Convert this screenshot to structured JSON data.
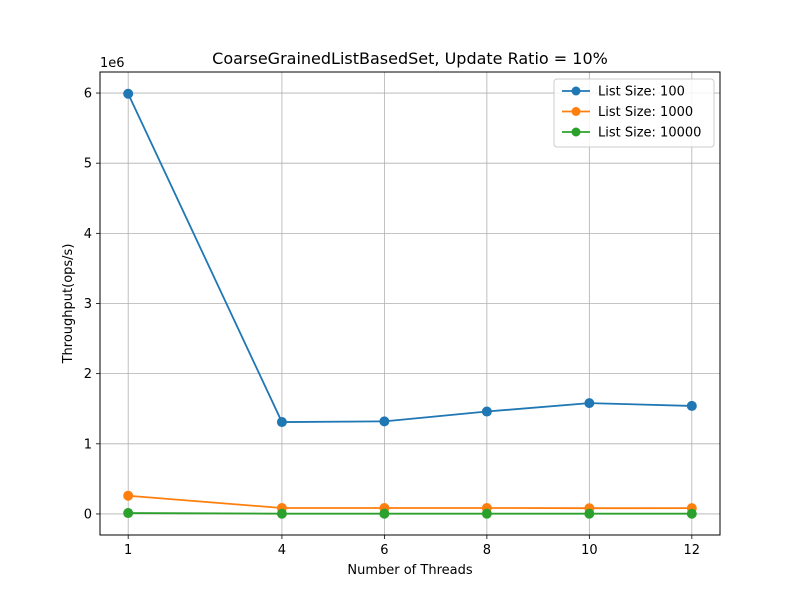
{
  "chart_data": {
    "type": "line",
    "title": "CoarseGrainedListBasedSet, Update Ratio = 10%",
    "xlabel": "Number of Threads",
    "ylabel": "Throughput(ops/s)",
    "y_offset_label": "1e6",
    "x": [
      1,
      4,
      6,
      8,
      10,
      12
    ],
    "x_ticks": [
      "1",
      "4",
      "6",
      "8",
      "10",
      "12"
    ],
    "y_ticks": [
      "0",
      "1",
      "2",
      "3",
      "4",
      "5",
      "6"
    ],
    "xlim": [
      0.45,
      12.55
    ],
    "ylim": [
      -300000,
      6300000
    ],
    "grid": true,
    "legend_position": "top-right",
    "series": [
      {
        "name": "List Size: 100",
        "color": "#1f77b4",
        "marker": "circle",
        "values": [
          5990000,
          1310000,
          1320000,
          1460000,
          1580000,
          1540000
        ]
      },
      {
        "name": "List Size: 1000",
        "color": "#ff7f0e",
        "marker": "circle",
        "values": [
          260000,
          85000,
          85000,
          85000,
          82000,
          83000
        ]
      },
      {
        "name": "List Size: 10000",
        "color": "#2ca02c",
        "marker": "circle",
        "values": [
          13000,
          4000,
          4000,
          4000,
          4000,
          4000
        ]
      }
    ]
  }
}
